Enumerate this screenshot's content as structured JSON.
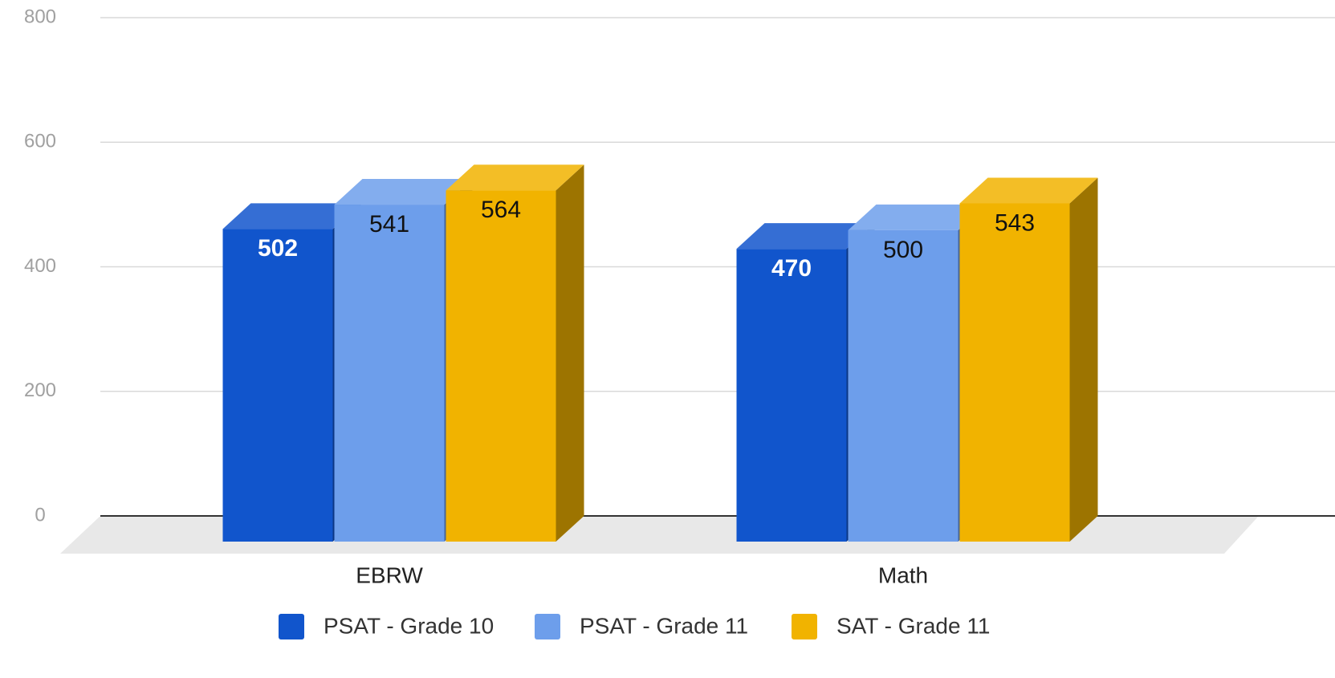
{
  "chart_data": {
    "type": "bar3d",
    "categories": [
      "EBRW",
      "Math"
    ],
    "series": [
      {
        "name": "PSAT - Grade 10",
        "color": "#1155cc",
        "values": [
          502,
          470
        ]
      },
      {
        "name": "PSAT - Grade 11",
        "color": "#6d9eeb",
        "values": [
          541,
          500
        ]
      },
      {
        "name": "SAT - Grade 11",
        "color": "#f1b300",
        "values": [
          564,
          543
        ]
      }
    ],
    "ylim": [
      0,
      800
    ],
    "yticks": [
      0,
      200,
      400,
      600,
      800
    ],
    "grid": true,
    "legend": "bottom"
  }
}
